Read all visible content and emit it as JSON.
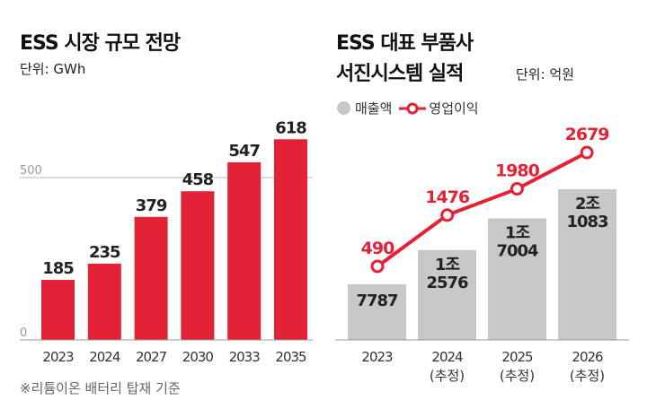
{
  "colors": {
    "bar_left": "#e32236",
    "bar_revenue": "#c8c8c8",
    "line": "#e32236",
    "value_dark": "#222222",
    "grid": "#bbbbbb"
  },
  "chart_data": [
    {
      "type": "bar",
      "title": "ESS 시장 규모 전망",
      "subtitle": "단위: GWh",
      "categories": [
        "2023",
        "2024",
        "2027",
        "2030",
        "2033",
        "2035"
      ],
      "values": [
        185,
        235,
        379,
        458,
        547,
        618
      ],
      "yticks": [
        "0",
        "500"
      ],
      "ylim": [
        0,
        650
      ],
      "grid": true,
      "footnote": "※리튬이온 배터리 탑재 기준"
    },
    {
      "type": "bar+line",
      "title_line1": "ESS 대표 부품사",
      "title_line2": "서진시스템 실적",
      "unit": "단위: 억원",
      "categories": [
        {
          "year": "2023",
          "note": ""
        },
        {
          "year": "2024",
          "note": "(추정)"
        },
        {
          "year": "2025",
          "note": "(추정)"
        },
        {
          "year": "2026",
          "note": "(추정)"
        }
      ],
      "legend": {
        "position": "top-left",
        "revenue": "매출액",
        "profit": "영업이익"
      },
      "series": [
        {
          "name": "매출액",
          "type": "bar",
          "values": [
            7787,
            12576,
            17004,
            21083
          ],
          "labels": [
            [
              "7787"
            ],
            [
              "1조",
              "2576"
            ],
            [
              "1조",
              "7004"
            ],
            [
              "2조",
              "1083"
            ]
          ]
        },
        {
          "name": "영업이익",
          "type": "line",
          "values": [
            490,
            1476,
            1980,
            2679
          ],
          "labels": [
            "490",
            "1476",
            "1980",
            "2679"
          ]
        }
      ]
    }
  ]
}
